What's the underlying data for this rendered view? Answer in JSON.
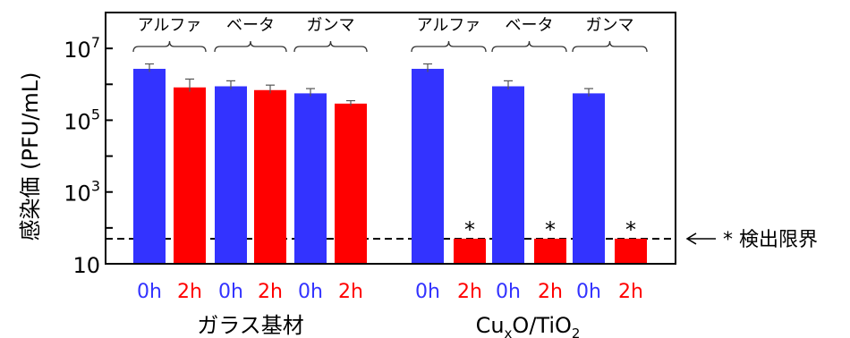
{
  "chart_data": {
    "type": "bar",
    "ylabel": "感染価 (PFU/mL)",
    "yscale": "log",
    "ylim": [
      10,
      100000000
    ],
    "y_ticks": [
      {
        "value": 10,
        "base": "10",
        "exp": ""
      },
      {
        "value": 1000,
        "base": "10",
        "exp": "3"
      },
      {
        "value": 100000,
        "base": "10",
        "exp": "5"
      },
      {
        "value": 10000000,
        "base": "10",
        "exp": "7"
      }
    ],
    "detection_limit": 50,
    "detection_limit_label": "* 検出限界",
    "below_limit_marker": "*",
    "groups": [
      {
        "label": "ガラス基材",
        "label_parts": [
          "ガラス基材"
        ]
      },
      {
        "label": "CuxO/TiO2",
        "label_parts": [
          "Cu",
          "x",
          "O/TiO",
          "2"
        ]
      }
    ],
    "virus_labels": [
      "アルファ",
      "ベータ",
      "ガンマ",
      "アルファ",
      "ベータ",
      "ガンマ"
    ],
    "series": [
      {
        "name": "0h",
        "color": "#3333ff"
      },
      {
        "name": "2h",
        "color": "#ff0000"
      }
    ],
    "bars": [
      {
        "group": 0,
        "virus": 0,
        "time": "0h",
        "value": 2700000,
        "err_high": 3700000,
        "err_low": 2200000,
        "below_limit": false
      },
      {
        "group": 0,
        "virus": 0,
        "time": "2h",
        "value": 820000,
        "err_high": 1400000,
        "err_low": 620000,
        "below_limit": false
      },
      {
        "group": 0,
        "virus": 1,
        "time": "0h",
        "value": 880000,
        "err_high": 1250000,
        "err_low": 720000,
        "below_limit": false
      },
      {
        "group": 0,
        "virus": 1,
        "time": "2h",
        "value": 690000,
        "err_high": 950000,
        "err_low": 560000,
        "below_limit": false
      },
      {
        "group": 0,
        "virus": 2,
        "time": "0h",
        "value": 560000,
        "err_high": 760000,
        "err_low": 460000,
        "below_limit": false
      },
      {
        "group": 0,
        "virus": 2,
        "time": "2h",
        "value": 290000,
        "err_high": 350000,
        "err_low": 250000,
        "below_limit": false
      },
      {
        "group": 1,
        "virus": 0,
        "time": "0h",
        "value": 2700000,
        "err_high": 3700000,
        "err_low": 2200000,
        "below_limit": false
      },
      {
        "group": 1,
        "virus": 0,
        "time": "2h",
        "value": 50,
        "err_high": null,
        "err_low": null,
        "below_limit": true
      },
      {
        "group": 1,
        "virus": 1,
        "time": "0h",
        "value": 880000,
        "err_high": 1250000,
        "err_low": 720000,
        "below_limit": false
      },
      {
        "group": 1,
        "virus": 1,
        "time": "2h",
        "value": 50,
        "err_high": null,
        "err_low": null,
        "below_limit": true
      },
      {
        "group": 1,
        "virus": 2,
        "time": "0h",
        "value": 560000,
        "err_high": 760000,
        "err_low": 460000,
        "below_limit": false
      },
      {
        "group": 1,
        "virus": 2,
        "time": "2h",
        "value": 50,
        "err_high": null,
        "err_low": null,
        "below_limit": true
      }
    ]
  }
}
